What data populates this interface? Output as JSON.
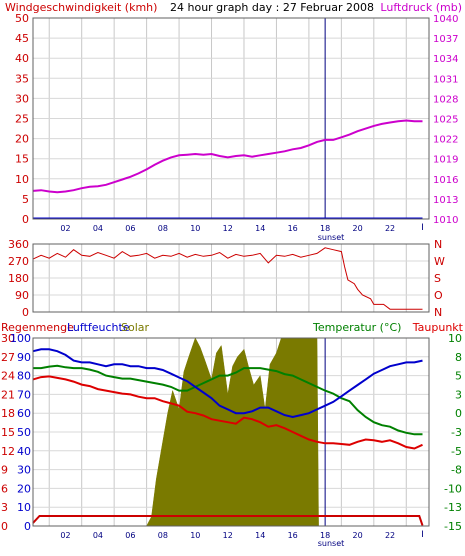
{
  "colors": {
    "wind": "#cc0000",
    "pressure": "#cc00cc",
    "humidity": "#0000cc",
    "solar": "#7a7a00",
    "temperature": "#008000",
    "dewpoint": "#dd0000",
    "rain": "#cc0000",
    "grid": "#c8c8c8",
    "frame": "#606060"
  },
  "chart_data": [
    {
      "type": "line",
      "title": "24 hour graph day : 27 Februar 2008",
      "left_axis_label": "Windgeschwindigkeit (kmh)",
      "right_axis_label": "Luftdruck (mb)",
      "x_ticks": [
        "02",
        "04",
        "06",
        "08",
        "10",
        "12",
        "14",
        "16",
        "18",
        "20",
        "22"
      ],
      "x_end_marker": "I",
      "sunset_label": "sunset",
      "sunset_hour": 18,
      "xlim": [
        0,
        24.4
      ],
      "left_ylim": [
        0,
        50
      ],
      "left_ticks": [
        "0",
        "5",
        "10",
        "15",
        "20",
        "25",
        "30",
        "35",
        "40",
        "45",
        "50"
      ],
      "right_ylim": [
        1010,
        1040
      ],
      "right_ticks": [
        "1010",
        "1013",
        "1016",
        "1019",
        "1022",
        "1025",
        "1028",
        "1031",
        "1034",
        "1037",
        "1040"
      ],
      "series": [
        {
          "name": "Luftdruck",
          "axis": "right",
          "x": [
            0,
            0.5,
            1,
            1.5,
            2,
            2.5,
            3,
            3.5,
            4,
            4.5,
            5,
            5.5,
            6,
            6.5,
            7,
            7.5,
            8,
            8.5,
            9,
            9.5,
            10,
            10.5,
            11,
            11.5,
            12,
            12.5,
            13,
            13.5,
            14,
            14.5,
            15,
            15.5,
            16,
            16.5,
            17,
            17.5,
            18,
            18.5,
            19,
            19.5,
            20,
            20.5,
            21,
            21.5,
            22,
            22.5,
            23,
            23.5,
            24
          ],
          "values": [
            1014.2,
            1014.3,
            1014.1,
            1014.0,
            1014.1,
            1014.3,
            1014.6,
            1014.8,
            1014.9,
            1015.1,
            1015.5,
            1015.9,
            1016.3,
            1016.8,
            1017.4,
            1018.1,
            1018.7,
            1019.2,
            1019.5,
            1019.6,
            1019.7,
            1019.6,
            1019.7,
            1019.4,
            1019.2,
            1019.4,
            1019.5,
            1019.3,
            1019.5,
            1019.7,
            1019.9,
            1020.1,
            1020.4,
            1020.6,
            1021.0,
            1021.5,
            1021.8,
            1021.8,
            1022.2,
            1022.6,
            1023.1,
            1023.5,
            1023.9,
            1024.2,
            1024.4,
            1024.6,
            1024.7,
            1024.6,
            1024.6
          ]
        },
        {
          "name": "Windgeschwindigkeit",
          "axis": "left",
          "x": [
            0,
            24
          ],
          "values": [
            0.2,
            0.2
          ]
        }
      ]
    },
    {
      "type": "line",
      "x_ticks": [],
      "xlim": [
        0,
        24.4
      ],
      "left_ylim": [
        0,
        360
      ],
      "left_ticks": [
        "0",
        "90",
        "180",
        "270",
        "360"
      ],
      "right_labels": [
        "N",
        "W",
        "S",
        "O",
        "N"
      ],
      "series": [
        {
          "name": "Windrichtung",
          "x": [
            0,
            0.5,
            1,
            1.5,
            2,
            2.5,
            3,
            3.5,
            4,
            4.5,
            5,
            5.5,
            6,
            6.5,
            7,
            7.5,
            8,
            8.5,
            9,
            9.5,
            10,
            10.5,
            11,
            11.5,
            12,
            12.5,
            13,
            13.5,
            14,
            14.5,
            15,
            15.5,
            16,
            16.5,
            17,
            17.5,
            18,
            18.5,
            19,
            19.2,
            19.4,
            19.8,
            20.0,
            20.3,
            20.8,
            21.0,
            21.6,
            22.0,
            22.5,
            23.5,
            24
          ],
          "values": [
            280,
            300,
            285,
            310,
            290,
            330,
            300,
            295,
            315,
            300,
            285,
            320,
            295,
            300,
            310,
            285,
            300,
            295,
            310,
            290,
            305,
            295,
            300,
            315,
            285,
            305,
            295,
            300,
            310,
            260,
            300,
            295,
            305,
            290,
            300,
            310,
            340,
            330,
            320,
            240,
            170,
            150,
            120,
            90,
            70,
            40,
            40,
            15,
            15,
            15,
            15
          ]
        }
      ]
    },
    {
      "type": "line",
      "left_axis_label_1": "Regenmenge",
      "left_axis_label_2": "Luftfeuchte",
      "solar_label": "Solar",
      "right_axis_label_1": "Temperatur (°C)",
      "right_axis_label_2": "Taupunkt",
      "x_ticks": [
        "02",
        "04",
        "06",
        "08",
        "10",
        "12",
        "14",
        "16",
        "18",
        "20",
        "22"
      ],
      "x_end_marker": "I",
      "sunset_label": "sunset",
      "sunset_hour": 18,
      "xlim": [
        0,
        24.4
      ],
      "rain_ticks": [
        "0",
        "3",
        "6",
        "9",
        "12",
        "15",
        "18",
        "21",
        "24",
        "27",
        "30"
      ],
      "humidity_ticks": [
        "0",
        "10",
        "20",
        "30",
        "40",
        "50",
        "60",
        "70",
        "80",
        "90",
        "100"
      ],
      "right_ylim": [
        -15,
        10
      ],
      "right_ticks": [
        "-15",
        "-13",
        "-10",
        "-8",
        "-5",
        "-3",
        "0",
        "3",
        "5",
        "8",
        "10"
      ],
      "series": [
        {
          "name": "Solar",
          "kind": "area",
          "note_scale": "0-100 relative",
          "x": [
            7,
            7.3,
            7.6,
            8,
            8.3,
            8.6,
            9,
            9.3,
            9.6,
            10,
            10.3,
            10.6,
            11,
            11.3,
            11.6,
            12,
            12.3,
            12.6,
            13,
            13.3,
            13.6,
            14,
            14.3,
            14.6,
            15,
            15.3,
            15.6,
            16,
            16.5,
            17,
            17.5,
            17.6
          ],
          "values": [
            0,
            5,
            25,
            45,
            60,
            72,
            62,
            82,
            90,
            100,
            95,
            88,
            78,
            92,
            96,
            70,
            85,
            90,
            94,
            84,
            75,
            80,
            62,
            86,
            92,
            100,
            100,
            100,
            100,
            100,
            100,
            0
          ]
        },
        {
          "name": "Luftfeuchte",
          "x": [
            0,
            0.5,
            1,
            1.5,
            2,
            2.5,
            3,
            3.5,
            4,
            4.5,
            5,
            5.5,
            6,
            6.5,
            7,
            7.5,
            8,
            8.5,
            9,
            9.5,
            10,
            10.5,
            11,
            11.5,
            12,
            12.5,
            13,
            13.5,
            14,
            14.5,
            15,
            15.5,
            16,
            16.5,
            17,
            17.5,
            18,
            18.5,
            19,
            19.5,
            20,
            20.5,
            21,
            21.5,
            22,
            22.5,
            23,
            23.5,
            24
          ],
          "values": [
            93,
            94,
            94,
            93,
            91,
            88,
            87,
            87,
            86,
            85,
            86,
            86,
            85,
            85,
            84,
            84,
            83,
            81,
            79,
            77,
            74,
            71,
            68,
            64,
            62,
            60,
            60,
            61,
            63,
            63,
            61,
            59,
            58,
            59,
            60,
            62,
            64,
            66,
            69,
            72,
            75,
            78,
            81,
            83,
            85,
            86,
            87,
            87,
            88
          ]
        },
        {
          "name": "Temperatur",
          "x": [
            0,
            0.5,
            1,
            1.5,
            2,
            2.5,
            3,
            3.5,
            4,
            4.5,
            5,
            5.5,
            6,
            6.5,
            7,
            7.5,
            8,
            8.5,
            9,
            9.5,
            10,
            10.5,
            11,
            11.5,
            12,
            12.5,
            13,
            13.5,
            14,
            14.5,
            15,
            15.5,
            16,
            16.5,
            17,
            17.5,
            18,
            18.5,
            19,
            19.5,
            20,
            20.5,
            21,
            21.5,
            22,
            22.5,
            23,
            23.5,
            24
          ],
          "values": [
            6,
            6,
            6.2,
            6.3,
            6.1,
            6,
            6,
            5.8,
            5.5,
            5,
            4.8,
            4.6,
            4.6,
            4.4,
            4.2,
            4,
            3.8,
            3.5,
            3,
            3,
            3.5,
            4,
            4.5,
            5,
            5,
            5.4,
            6,
            6,
            6,
            5.8,
            5.6,
            5.2,
            5,
            4.5,
            4,
            3.5,
            3,
            2.6,
            2,
            1.6,
            0.4,
            -0.5,
            -1.2,
            -1.6,
            -1.8,
            -2.3,
            -2.6,
            -2.8,
            -2.8
          ]
        },
        {
          "name": "Taupunkt",
          "x": [
            0,
            0.5,
            1,
            1.5,
            2,
            2.5,
            3,
            3.5,
            4,
            4.5,
            5,
            5.5,
            6,
            6.5,
            7,
            7.5,
            8,
            8.5,
            9,
            9.5,
            10,
            10.5,
            11,
            11.5,
            12,
            12.5,
            13,
            13.5,
            14,
            14.5,
            15,
            15.5,
            16,
            16.5,
            17,
            17.5,
            18,
            18.5,
            19,
            19.5,
            20,
            20.5,
            21,
            21.5,
            22,
            22.5,
            23,
            23.5,
            24
          ],
          "values": [
            4.5,
            4.8,
            4.9,
            4.7,
            4.5,
            4.2,
            3.8,
            3.6,
            3.2,
            3,
            2.8,
            2.6,
            2.5,
            2.2,
            2,
            2,
            1.6,
            1.3,
            1,
            0.2,
            0,
            -0.3,
            -0.8,
            -1,
            -1.2,
            -1.4,
            -0.6,
            -0.8,
            -1.2,
            -1.8,
            -1.6,
            -2,
            -2.5,
            -3,
            -3.5,
            -3.8,
            -4,
            -4,
            -4.1,
            -4.2,
            -3.8,
            -3.5,
            -3.6,
            -3.8,
            -3.6,
            -4,
            -4.5,
            -4.7,
            -4.2
          ]
        },
        {
          "name": "Regenmenge",
          "x": [
            0,
            0.4,
            1,
            7,
            7.1,
            17.5,
            17.6,
            23.8,
            24
          ],
          "values": [
            0.5,
            1.6,
            1.6,
            1.6,
            1.6,
            1.6,
            1.6,
            1.6,
            0.1
          ]
        }
      ]
    }
  ]
}
